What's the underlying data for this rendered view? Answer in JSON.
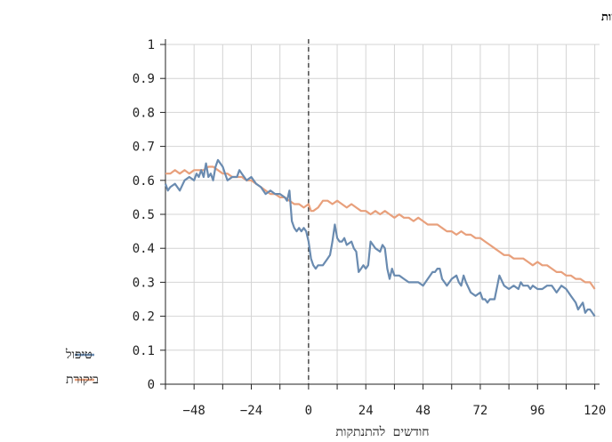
{
  "chart_data": {
    "type": "line",
    "title": "רמות בשתי הקבוצות",
    "xlabel": "חודשים להתנתקות",
    "ylabel": "",
    "xlim": [
      -60,
      122
    ],
    "ylim": [
      0,
      1
    ],
    "x_ticks": [
      -48,
      -24,
      0,
      24,
      48,
      72,
      96,
      120
    ],
    "x_tick_labels": [
      "−48",
      "−24",
      "0",
      "24",
      "48",
      "72",
      "96",
      "120"
    ],
    "y_ticks": [
      0,
      0.1,
      0.2,
      0.3,
      0.4,
      0.5,
      0.6,
      0.7,
      0.8,
      0.9,
      1
    ],
    "y_tick_labels": [
      "0",
      "0.1",
      "0.2",
      "0.3",
      "0.4",
      "0.5",
      "0.6",
      "0.7",
      "0.8",
      "0.9",
      "1"
    ],
    "grid": true,
    "vline": 0,
    "legend_position": "bottom-left",
    "series": [
      {
        "name": "טיפול",
        "color": "#6a8bb0",
        "points": [
          [
            -60,
            0.59
          ],
          [
            -59,
            0.57
          ],
          [
            -58,
            0.58
          ],
          [
            -56,
            0.59
          ],
          [
            -54,
            0.57
          ],
          [
            -52,
            0.6
          ],
          [
            -50,
            0.61
          ],
          [
            -48,
            0.6
          ],
          [
            -47,
            0.62
          ],
          [
            -46,
            0.61
          ],
          [
            -45,
            0.63
          ],
          [
            -44,
            0.61
          ],
          [
            -43,
            0.65
          ],
          [
            -42,
            0.61
          ],
          [
            -41,
            0.62
          ],
          [
            -40,
            0.6
          ],
          [
            -39,
            0.64
          ],
          [
            -38,
            0.66
          ],
          [
            -37,
            0.65
          ],
          [
            -36,
            0.64
          ],
          [
            -35,
            0.62
          ],
          [
            -34,
            0.6
          ],
          [
            -32,
            0.61
          ],
          [
            -30,
            0.61
          ],
          [
            -29,
            0.63
          ],
          [
            -28,
            0.62
          ],
          [
            -26,
            0.6
          ],
          [
            -24,
            0.61
          ],
          [
            -22,
            0.59
          ],
          [
            -20,
            0.58
          ],
          [
            -18,
            0.56
          ],
          [
            -16,
            0.57
          ],
          [
            -14,
            0.56
          ],
          [
            -12,
            0.56
          ],
          [
            -10,
            0.55
          ],
          [
            -9,
            0.54
          ],
          [
            -8,
            0.57
          ],
          [
            -7,
            0.48
          ],
          [
            -6,
            0.46
          ],
          [
            -5,
            0.45
          ],
          [
            -4,
            0.46
          ],
          [
            -3,
            0.45
          ],
          [
            -2,
            0.46
          ],
          [
            -1,
            0.45
          ],
          [
            0,
            0.42
          ],
          [
            1,
            0.37
          ],
          [
            2,
            0.35
          ],
          [
            3,
            0.34
          ],
          [
            4,
            0.35
          ],
          [
            6,
            0.35
          ],
          [
            8,
            0.37
          ],
          [
            9,
            0.38
          ],
          [
            10,
            0.42
          ],
          [
            11,
            0.47
          ],
          [
            12,
            0.43
          ],
          [
            13,
            0.42
          ],
          [
            14,
            0.42
          ],
          [
            15,
            0.43
          ],
          [
            16,
            0.41
          ],
          [
            18,
            0.42
          ],
          [
            19,
            0.4
          ],
          [
            20,
            0.39
          ],
          [
            21,
            0.33
          ],
          [
            22,
            0.34
          ],
          [
            23,
            0.35
          ],
          [
            24,
            0.34
          ],
          [
            25,
            0.35
          ],
          [
            26,
            0.42
          ],
          [
            27,
            0.41
          ],
          [
            28,
            0.4
          ],
          [
            30,
            0.39
          ],
          [
            31,
            0.41
          ],
          [
            32,
            0.4
          ],
          [
            33,
            0.34
          ],
          [
            34,
            0.31
          ],
          [
            35,
            0.34
          ],
          [
            36,
            0.32
          ],
          [
            38,
            0.32
          ],
          [
            40,
            0.31
          ],
          [
            42,
            0.3
          ],
          [
            44,
            0.3
          ],
          [
            46,
            0.3
          ],
          [
            48,
            0.29
          ],
          [
            50,
            0.31
          ],
          [
            52,
            0.33
          ],
          [
            53,
            0.33
          ],
          [
            54,
            0.34
          ],
          [
            55,
            0.34
          ],
          [
            56,
            0.31
          ],
          [
            57,
            0.3
          ],
          [
            58,
            0.29
          ],
          [
            60,
            0.31
          ],
          [
            62,
            0.32
          ],
          [
            63,
            0.3
          ],
          [
            64,
            0.29
          ],
          [
            65,
            0.32
          ],
          [
            66,
            0.3
          ],
          [
            68,
            0.27
          ],
          [
            70,
            0.26
          ],
          [
            72,
            0.27
          ],
          [
            73,
            0.25
          ],
          [
            74,
            0.25
          ],
          [
            75,
            0.24
          ],
          [
            76,
            0.25
          ],
          [
            78,
            0.25
          ],
          [
            80,
            0.32
          ],
          [
            82,
            0.29
          ],
          [
            84,
            0.28
          ],
          [
            86,
            0.29
          ],
          [
            88,
            0.28
          ],
          [
            89,
            0.3
          ],
          [
            90,
            0.29
          ],
          [
            92,
            0.29
          ],
          [
            93,
            0.28
          ],
          [
            94,
            0.29
          ],
          [
            96,
            0.28
          ],
          [
            98,
            0.28
          ],
          [
            100,
            0.29
          ],
          [
            102,
            0.29
          ],
          [
            104,
            0.27
          ],
          [
            106,
            0.29
          ],
          [
            108,
            0.28
          ],
          [
            110,
            0.26
          ],
          [
            111,
            0.25
          ],
          [
            112,
            0.24
          ],
          [
            113,
            0.22
          ],
          [
            114,
            0.23
          ],
          [
            115,
            0.24
          ],
          [
            116,
            0.21
          ],
          [
            117,
            0.22
          ],
          [
            118,
            0.22
          ],
          [
            119,
            0.21
          ],
          [
            120,
            0.2
          ]
        ]
      },
      {
        "name": "ביקורת",
        "color": "#e8a07c",
        "points": [
          [
            -60,
            0.62
          ],
          [
            -58,
            0.62
          ],
          [
            -56,
            0.63
          ],
          [
            -54,
            0.62
          ],
          [
            -52,
            0.63
          ],
          [
            -50,
            0.62
          ],
          [
            -48,
            0.63
          ],
          [
            -46,
            0.63
          ],
          [
            -44,
            0.63
          ],
          [
            -42,
            0.64
          ],
          [
            -40,
            0.64
          ],
          [
            -38,
            0.63
          ],
          [
            -36,
            0.62
          ],
          [
            -34,
            0.62
          ],
          [
            -32,
            0.61
          ],
          [
            -30,
            0.61
          ],
          [
            -28,
            0.61
          ],
          [
            -26,
            0.6
          ],
          [
            -24,
            0.6
          ],
          [
            -22,
            0.59
          ],
          [
            -20,
            0.58
          ],
          [
            -18,
            0.57
          ],
          [
            -16,
            0.56
          ],
          [
            -14,
            0.56
          ],
          [
            -12,
            0.55
          ],
          [
            -10,
            0.55
          ],
          [
            -8,
            0.54
          ],
          [
            -6,
            0.53
          ],
          [
            -4,
            0.53
          ],
          [
            -2,
            0.52
          ],
          [
            0,
            0.53
          ],
          [
            1,
            0.51
          ],
          [
            2,
            0.51
          ],
          [
            4,
            0.52
          ],
          [
            6,
            0.54
          ],
          [
            8,
            0.54
          ],
          [
            10,
            0.53
          ],
          [
            12,
            0.54
          ],
          [
            14,
            0.53
          ],
          [
            16,
            0.52
          ],
          [
            18,
            0.53
          ],
          [
            20,
            0.52
          ],
          [
            22,
            0.51
          ],
          [
            24,
            0.51
          ],
          [
            26,
            0.5
          ],
          [
            28,
            0.51
          ],
          [
            30,
            0.5
          ],
          [
            32,
            0.51
          ],
          [
            34,
            0.5
          ],
          [
            36,
            0.49
          ],
          [
            38,
            0.5
          ],
          [
            40,
            0.49
          ],
          [
            42,
            0.49
          ],
          [
            44,
            0.48
          ],
          [
            46,
            0.49
          ],
          [
            48,
            0.48
          ],
          [
            50,
            0.47
          ],
          [
            52,
            0.47
          ],
          [
            54,
            0.47
          ],
          [
            56,
            0.46
          ],
          [
            58,
            0.45
          ],
          [
            60,
            0.45
          ],
          [
            62,
            0.44
          ],
          [
            64,
            0.45
          ],
          [
            66,
            0.44
          ],
          [
            68,
            0.44
          ],
          [
            70,
            0.43
          ],
          [
            72,
            0.43
          ],
          [
            74,
            0.42
          ],
          [
            76,
            0.41
          ],
          [
            78,
            0.4
          ],
          [
            80,
            0.39
          ],
          [
            82,
            0.38
          ],
          [
            84,
            0.38
          ],
          [
            86,
            0.37
          ],
          [
            88,
            0.37
          ],
          [
            90,
            0.37
          ],
          [
            92,
            0.36
          ],
          [
            94,
            0.35
          ],
          [
            96,
            0.36
          ],
          [
            98,
            0.35
          ],
          [
            100,
            0.35
          ],
          [
            102,
            0.34
          ],
          [
            104,
            0.33
          ],
          [
            106,
            0.33
          ],
          [
            108,
            0.32
          ],
          [
            110,
            0.32
          ],
          [
            112,
            0.31
          ],
          [
            114,
            0.31
          ],
          [
            116,
            0.3
          ],
          [
            118,
            0.3
          ],
          [
            119,
            0.29
          ],
          [
            120,
            0.28
          ]
        ]
      }
    ]
  }
}
